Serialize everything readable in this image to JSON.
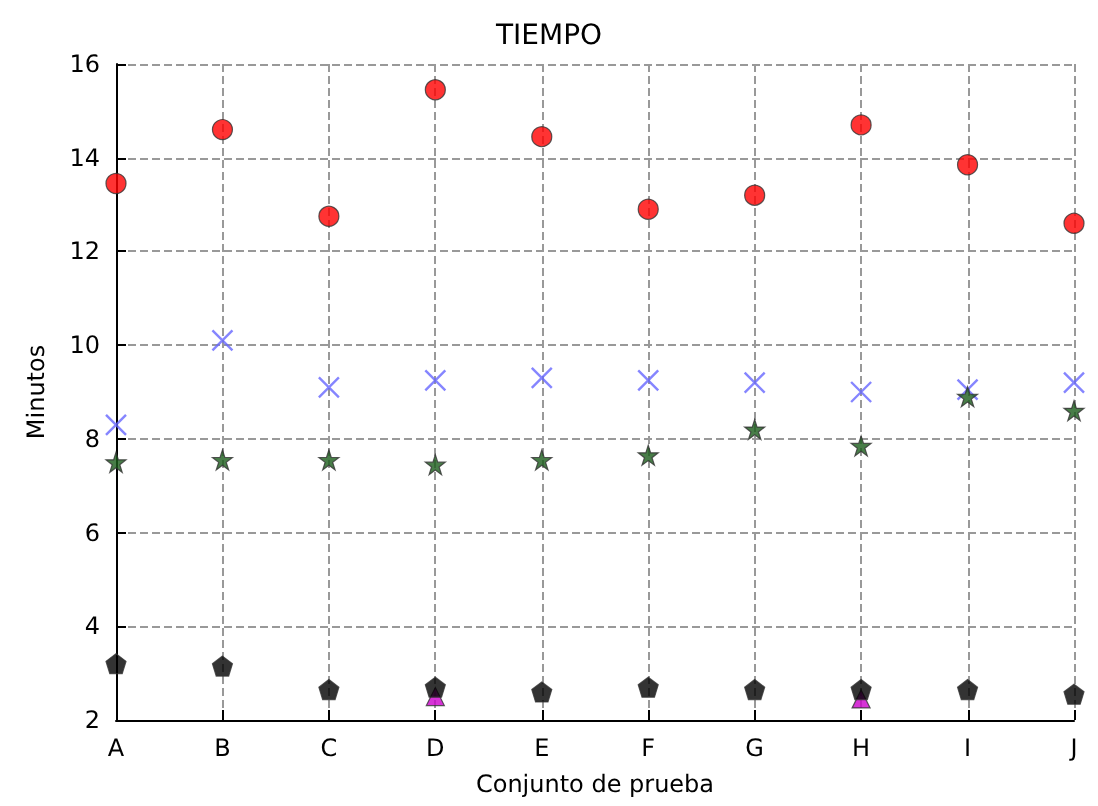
{
  "chart_data": {
    "type": "scatter",
    "title": "TIEMPO",
    "xlabel": "Conjunto de prueba",
    "ylabel": "Minutos",
    "categories": [
      "A",
      "B",
      "C",
      "D",
      "E",
      "F",
      "G",
      "H",
      "I",
      "J"
    ],
    "ylim": [
      2,
      16
    ],
    "yticks": [
      2,
      4,
      6,
      8,
      10,
      12,
      14,
      16
    ],
    "grid": true,
    "series": [
      {
        "color": "#ff0000",
        "marker": "circle",
        "values": [
          13.45,
          14.6,
          12.75,
          15.45,
          14.45,
          12.9,
          13.2,
          14.7,
          13.85,
          12.6
        ]
      },
      {
        "color": "#6666ff",
        "marker": "cross",
        "values": [
          8.3,
          10.1,
          9.1,
          9.25,
          9.3,
          9.25,
          9.2,
          9.0,
          9.05,
          9.2
        ]
      },
      {
        "color": "#1a5c1a",
        "marker": "star",
        "values": [
          7.5,
          7.55,
          7.55,
          7.45,
          7.55,
          7.65,
          8.2,
          7.85,
          8.9,
          8.6
        ]
      },
      {
        "color": "#cc00cc",
        "marker": "triangle",
        "values": [
          null,
          null,
          null,
          2.5,
          null,
          null,
          null,
          2.45,
          null,
          null
        ]
      },
      {
        "color": "#000000",
        "values": [
          3.2,
          3.15,
          2.65,
          2.7,
          2.6,
          2.7,
          2.65,
          2.65,
          2.65,
          2.55
        ]
      }
    ]
  }
}
